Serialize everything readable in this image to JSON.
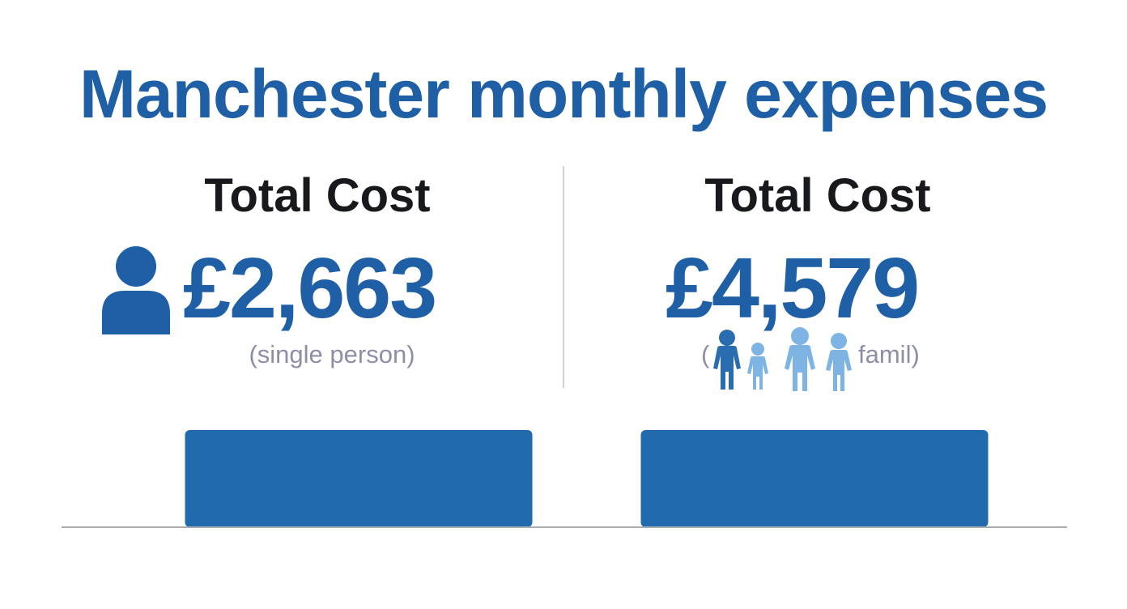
{
  "title": "Manchester monthly expenses",
  "left_panel": {
    "heading": "Total Cost",
    "amount": "£2,663",
    "caption": "(single person)",
    "icon": "person-icon"
  },
  "right_panel": {
    "heading": "Total Cost",
    "amount": "£4,579",
    "caption_open": "(",
    "caption_text": "famil)",
    "icon": "family-icon"
  },
  "colors": {
    "accent": "#1e5fa5",
    "bar": "#216aae",
    "family_dark": "#2a6cb0",
    "family_light": "#7db4e3",
    "caption": "#8c8fa6",
    "heading": "#17191c"
  },
  "chart_data": {
    "type": "bar",
    "categories": [
      "single person",
      "famil"
    ],
    "values": [
      2663,
      4579
    ],
    "title": "Manchester monthly expenses",
    "xlabel": "",
    "ylabel": "",
    "grid": false,
    "legend": "none"
  }
}
